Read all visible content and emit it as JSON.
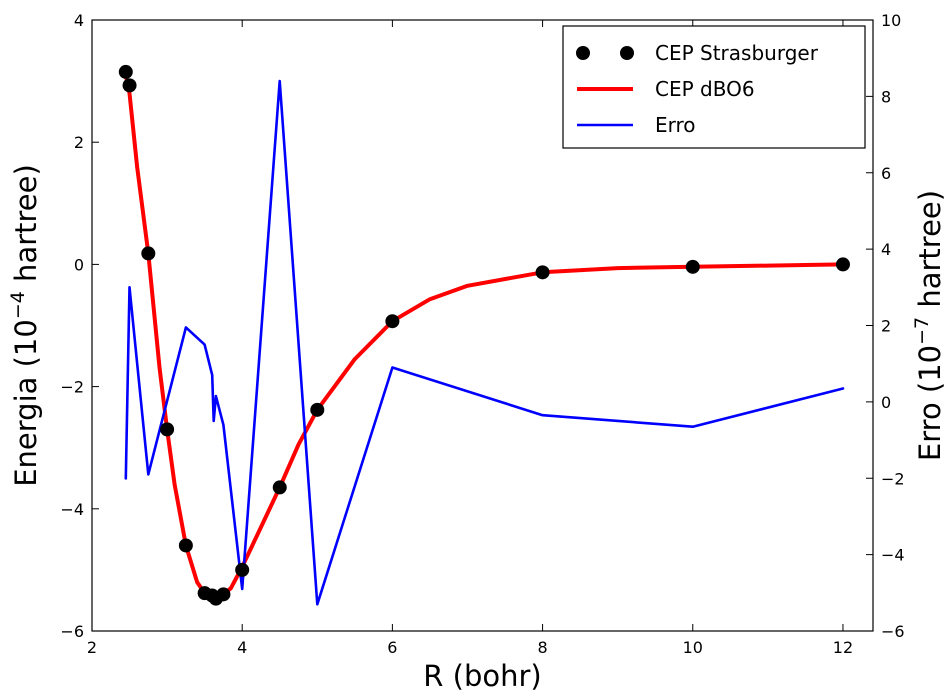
{
  "chart_data": {
    "type": "line",
    "xlabel": "R (bohr)",
    "ylabel_left": {
      "text": "Energia (",
      "base": "10",
      "exp": "−4",
      "unit": " hartree)"
    },
    "ylabel_right": {
      "text": "Erro (",
      "base": "10",
      "exp": "−7",
      "unit": " hartree)"
    },
    "xlim": [
      2,
      12.4
    ],
    "ylim_left": [
      -6,
      4
    ],
    "ylim_right": [
      -6,
      10
    ],
    "x_ticks": [
      "2",
      "4",
      "6",
      "8",
      "10",
      "12"
    ],
    "y_left_ticks": [
      "−6",
      "−4",
      "−2",
      "0",
      "2",
      "4"
    ],
    "y_right_ticks": [
      "−6",
      "−4",
      "−2",
      "0",
      "2",
      "4",
      "6",
      "8",
      "10"
    ],
    "grid": false,
    "legend_position": "top-right",
    "series": [
      {
        "name": "CEP Strasburger",
        "axis": "left",
        "style": "markers",
        "color": "#000000",
        "x": [
          2.45,
          2.5,
          2.75,
          3.0,
          3.25,
          3.5,
          3.6,
          3.65,
          3.75,
          4.0,
          4.5,
          5.0,
          6.0,
          8.0,
          10.0,
          12.0
        ],
        "y": [
          3.15,
          2.93,
          0.18,
          -2.7,
          -4.6,
          -5.38,
          -5.42,
          -5.47,
          -5.4,
          -5.0,
          -3.65,
          -2.38,
          -0.93,
          -0.13,
          -0.04,
          0.0
        ]
      },
      {
        "name": "CEP dBO6",
        "axis": "left",
        "style": "line",
        "color": "#ff0000",
        "x": [
          2.45,
          2.5,
          2.6,
          2.75,
          2.9,
          3.0,
          3.1,
          3.25,
          3.4,
          3.5,
          3.6,
          3.65,
          3.75,
          3.85,
          4.0,
          4.25,
          4.5,
          4.75,
          5.0,
          5.5,
          6.0,
          6.5,
          7.0,
          8.0,
          9.0,
          10.0,
          11.0,
          12.0
        ],
        "y": [
          3.1,
          2.8,
          1.6,
          0.18,
          -1.7,
          -2.7,
          -3.6,
          -4.6,
          -5.2,
          -5.38,
          -5.43,
          -5.45,
          -5.4,
          -5.3,
          -4.95,
          -4.3,
          -3.65,
          -2.95,
          -2.38,
          -1.55,
          -0.93,
          -0.57,
          -0.35,
          -0.13,
          -0.06,
          -0.04,
          -0.02,
          0.0
        ]
      },
      {
        "name": "Erro",
        "axis": "right",
        "style": "line",
        "color": "#0000ff",
        "x": [
          2.45,
          2.5,
          2.75,
          3.25,
          3.5,
          3.6,
          3.62,
          3.65,
          3.75,
          4.0,
          4.5,
          5.0,
          6.0,
          8.0,
          10.0,
          12.0
        ],
        "y": [
          -2.0,
          3.0,
          -1.9,
          1.95,
          1.5,
          0.7,
          -0.5,
          0.15,
          -0.6,
          -4.9,
          8.4,
          -5.3,
          0.9,
          -0.35,
          -0.65,
          0.35
        ]
      }
    ]
  }
}
